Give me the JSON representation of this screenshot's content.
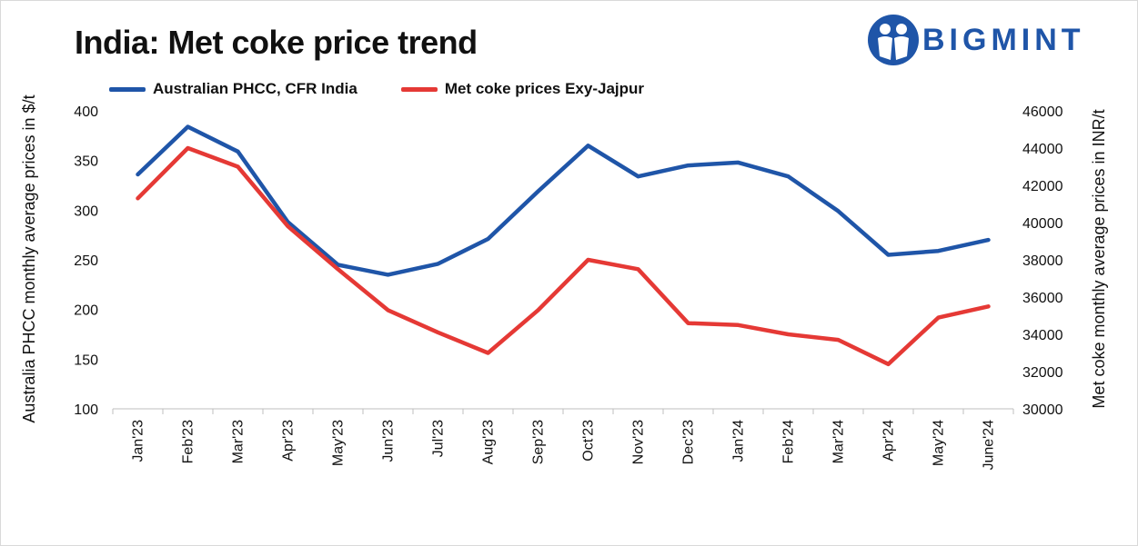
{
  "header": {
    "title": "India: Met coke price trend",
    "brand": "BIGMINT"
  },
  "chart_data": {
    "type": "line",
    "title": "India: Met coke price trend",
    "categories": [
      "Jan'23",
      "Feb'23",
      "Mar'23",
      "Apr'23",
      "May'23",
      "Jun'23",
      "Jul'23",
      "Aug'23",
      "Sep'23",
      "Oct'23",
      "Nov'23",
      "Dec'23",
      "Jan'24",
      "Feb'24",
      "Mar'24",
      "Apr'24",
      "May'24",
      "June'24"
    ],
    "ylabel_left": "Australia PHCC monthly average prices in $/t",
    "ylabel_right": "Met coke monthly average prices in INR/t",
    "ylim_left": [
      100,
      400
    ],
    "ylim_right": [
      30000,
      46000
    ],
    "yticks_left": [
      "400",
      "350",
      "300",
      "250",
      "200",
      "150",
      "100"
    ],
    "yticks_right": [
      "46000",
      "44000",
      "42000",
      "40000",
      "38000",
      "36000",
      "34000",
      "32000",
      "30000"
    ],
    "legend_position": "top-left",
    "series": [
      {
        "name": "Australian PHCC, CFR India",
        "axis": "left",
        "color": "#1f55a8",
        "values": [
          336,
          384,
          359,
          288,
          245,
          235,
          246,
          271,
          319,
          365,
          334,
          345,
          348,
          334,
          299,
          255,
          259,
          270
        ]
      },
      {
        "name": "Met coke prices Exy-Jajpur",
        "axis": "right",
        "color": "#e53935",
        "values": [
          41300,
          44000,
          43000,
          39800,
          37500,
          35300,
          34100,
          33000,
          35300,
          38000,
          37500,
          34600,
          34500,
          34000,
          33700,
          32400,
          34900,
          35500
        ]
      }
    ]
  }
}
